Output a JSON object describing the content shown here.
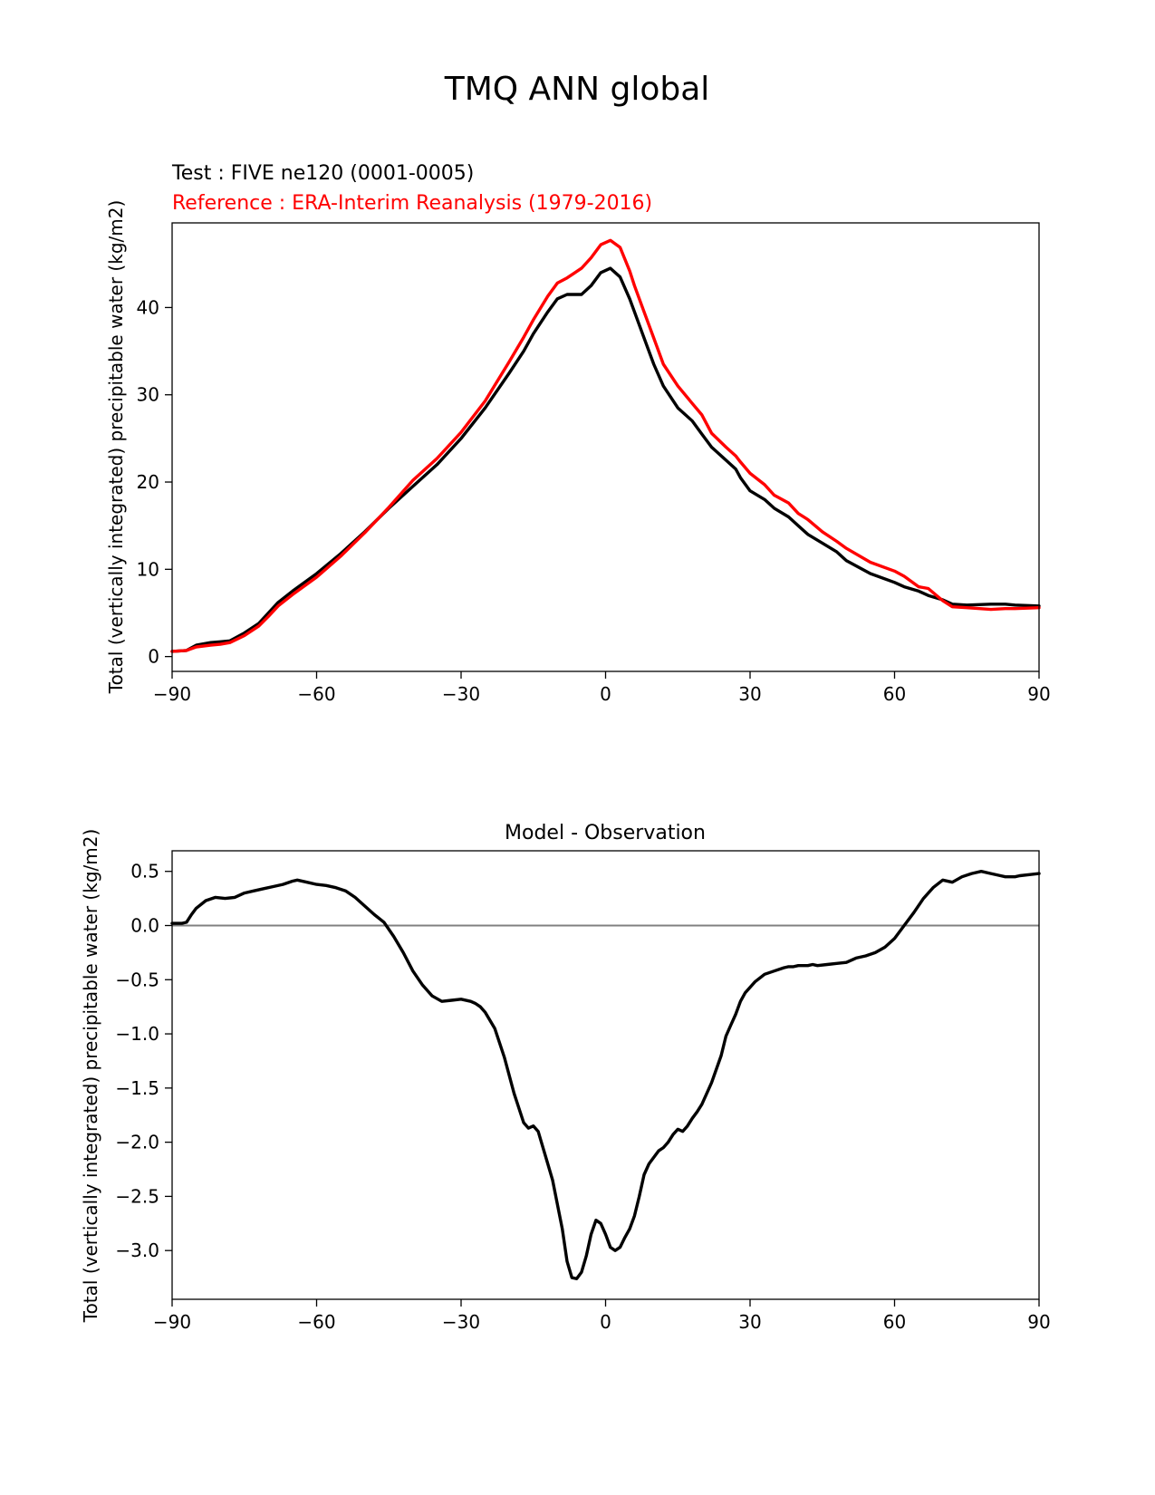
{
  "suptitle": "TMQ ANN global",
  "chart_data": [
    {
      "type": "line",
      "title_test": "Test : FIVE ne120 (0001-0005)",
      "title_reference": "Reference : ERA-Interim Reanalysis (1979-2016)",
      "xlabel": "",
      "ylabel": "Total (vertically integrated) precipitable water (kg/m2)",
      "xlim": [
        -90,
        90
      ],
      "ylim": [
        -1.7,
        49.7
      ],
      "xticks": [
        -90,
        -60,
        -30,
        0,
        30,
        60,
        90
      ],
      "xtick_labels": [
        "−90",
        "−60",
        "−30",
        "0",
        "30",
        "60",
        "90"
      ],
      "yticks": [
        0,
        10,
        20,
        30,
        40
      ],
      "ytick_labels": [
        "0",
        "10",
        "20",
        "30",
        "40"
      ],
      "grid": false,
      "series": [
        {
          "name": "Test : FIVE ne120 (0001-0005)",
          "color": "#000000",
          "x": [
            -90,
            -87,
            -85,
            -82,
            -80,
            -78,
            -75,
            -72,
            -70,
            -68,
            -65,
            -60,
            -55,
            -50,
            -45,
            -40,
            -35,
            -30,
            -25,
            -20,
            -17,
            -15,
            -12,
            -10,
            -8,
            -5,
            -3,
            -1,
            1,
            3,
            5,
            6,
            8,
            10,
            12,
            15,
            18,
            20,
            22,
            25,
            27,
            28,
            30,
            33,
            35,
            38,
            40,
            42,
            45,
            48,
            50,
            55,
            60,
            62,
            65,
            67,
            70,
            72,
            75,
            80,
            83,
            85,
            90
          ],
          "y": [
            0.6,
            0.7,
            1.3,
            1.6,
            1.7,
            1.8,
            2.7,
            3.8,
            5.0,
            6.2,
            7.5,
            9.5,
            11.8,
            14.3,
            17.0,
            19.5,
            22.0,
            25.0,
            28.5,
            32.5,
            35.0,
            37.0,
            39.5,
            41.0,
            41.5,
            41.5,
            42.5,
            44.0,
            44.5,
            43.5,
            41.0,
            39.5,
            36.5,
            33.5,
            31.0,
            28.5,
            27.0,
            25.5,
            24.0,
            22.5,
            21.5,
            20.5,
            19.0,
            18.0,
            17.0,
            16.0,
            15.0,
            14.0,
            13.0,
            12.0,
            11.0,
            9.5,
            8.5,
            8.0,
            7.5,
            7.0,
            6.5,
            6.0,
            5.9,
            6.0,
            6.0,
            5.9,
            5.8
          ]
        },
        {
          "name": "Reference : ERA-Interim Reanalysis (1979-2016)",
          "color": "#ff0000",
          "x": [
            -90,
            -87,
            -85,
            -82,
            -80,
            -78,
            -75,
            -72,
            -70,
            -68,
            -65,
            -60,
            -55,
            -50,
            -45,
            -40,
            -35,
            -30,
            -25,
            -20,
            -17,
            -15,
            -12,
            -10,
            -8,
            -5,
            -3,
            -1,
            1,
            3,
            5,
            6,
            8,
            10,
            12,
            15,
            18,
            20,
            22,
            25,
            27,
            28,
            30,
            33,
            35,
            38,
            40,
            42,
            45,
            48,
            50,
            55,
            60,
            62,
            65,
            67,
            70,
            72,
            75,
            80,
            83,
            85,
            90
          ],
          "y": [
            0.6,
            0.7,
            1.1,
            1.3,
            1.4,
            1.6,
            2.4,
            3.5,
            4.6,
            5.8,
            7.1,
            9.1,
            11.5,
            14.2,
            17.1,
            20.2,
            22.7,
            25.7,
            29.3,
            33.8,
            36.6,
            38.6,
            41.3,
            42.8,
            43.4,
            44.5,
            45.7,
            47.2,
            47.7,
            46.9,
            44.2,
            42.5,
            39.5,
            36.5,
            33.5,
            31.0,
            29.0,
            27.7,
            25.6,
            24.0,
            23.0,
            22.3,
            21.0,
            19.7,
            18.5,
            17.6,
            16.4,
            15.7,
            14.3,
            13.2,
            12.4,
            10.8,
            9.8,
            9.2,
            8.0,
            7.8,
            6.4,
            5.7,
            5.6,
            5.4,
            5.5,
            5.5,
            5.6
          ]
        }
      ]
    },
    {
      "type": "line",
      "title": "Model - Observation",
      "xlabel": "",
      "ylabel": "Total (vertically integrated) precipitable water (kg/m2)",
      "xlim": [
        -90,
        90
      ],
      "ylim": [
        -3.45,
        0.69
      ],
      "xticks": [
        -90,
        -60,
        -30,
        0,
        30,
        60,
        90
      ],
      "xtick_labels": [
        "−90",
        "−60",
        "−30",
        "0",
        "30",
        "60",
        "90"
      ],
      "yticks": [
        0.5,
        0.0,
        -0.5,
        -1.0,
        -1.5,
        -2.0,
        -2.5,
        -3.0
      ],
      "ytick_labels": [
        "0.5",
        "0.0",
        "−0.5",
        "−1.0",
        "−1.5",
        "−2.0",
        "−2.5",
        "−3.0"
      ],
      "grid": false,
      "zero_line": {
        "y": 0.0,
        "color": "#808080"
      },
      "series": [
        {
          "name": "Model - Observation",
          "color": "#000000",
          "x": [
            -90,
            -88,
            -87,
            -86,
            -85,
            -83,
            -81,
            -79,
            -77,
            -75,
            -73,
            -71,
            -69,
            -67,
            -65,
            -64,
            -62,
            -60,
            -58,
            -56,
            -54,
            -52,
            -50,
            -48,
            -46,
            -44,
            -42,
            -40,
            -38,
            -36,
            -34,
            -32,
            -30,
            -28,
            -27,
            -26,
            -25,
            -23,
            -21,
            -19,
            -17,
            -16,
            -15,
            -14,
            -13,
            -12,
            -11,
            -9,
            -8,
            -7,
            -6,
            -5,
            -4,
            -3,
            -2,
            -1,
            0,
            1,
            2,
            3,
            4,
            5,
            6,
            7,
            8,
            9,
            10,
            11,
            12,
            13,
            14,
            15,
            16,
            17,
            18,
            19,
            20,
            22,
            24,
            25,
            26,
            27,
            28,
            29,
            31,
            33,
            35,
            37,
            38,
            39,
            40,
            42,
            43,
            44,
            46,
            48,
            50,
            52,
            54,
            56,
            58,
            60,
            62,
            64,
            66,
            68,
            70,
            72,
            74,
            76,
            78,
            80,
            82,
            83,
            84,
            85,
            86,
            88,
            90
          ],
          "y": [
            0.02,
            0.02,
            0.03,
            0.1,
            0.16,
            0.23,
            0.26,
            0.25,
            0.26,
            0.3,
            0.32,
            0.34,
            0.36,
            0.38,
            0.41,
            0.42,
            0.4,
            0.38,
            0.37,
            0.35,
            0.32,
            0.26,
            0.18,
            0.1,
            0.03,
            -0.1,
            -0.25,
            -0.42,
            -0.55,
            -0.65,
            -0.7,
            -0.69,
            -0.68,
            -0.7,
            -0.72,
            -0.75,
            -0.8,
            -0.95,
            -1.22,
            -1.55,
            -1.82,
            -1.87,
            -1.85,
            -1.9,
            -2.05,
            -2.2,
            -2.35,
            -2.8,
            -3.1,
            -3.25,
            -3.26,
            -3.2,
            -3.05,
            -2.85,
            -2.72,
            -2.75,
            -2.85,
            -2.97,
            -3.0,
            -2.97,
            -2.88,
            -2.8,
            -2.68,
            -2.5,
            -2.3,
            -2.2,
            -2.14,
            -2.08,
            -2.05,
            -2.0,
            -1.93,
            -1.88,
            -1.9,
            -1.85,
            -1.78,
            -1.72,
            -1.65,
            -1.45,
            -1.2,
            -1.02,
            -0.92,
            -0.82,
            -0.7,
            -0.62,
            -0.52,
            -0.45,
            -0.42,
            -0.39,
            -0.38,
            -0.38,
            -0.37,
            -0.37,
            -0.36,
            -0.37,
            -0.36,
            -0.35,
            -0.34,
            -0.3,
            -0.28,
            -0.25,
            -0.2,
            -0.12,
            0.0,
            0.12,
            0.25,
            0.35,
            0.42,
            0.4,
            0.45,
            0.48,
            0.5,
            0.48,
            0.46,
            0.45,
            0.45,
            0.45,
            0.46,
            0.47,
            0.48
          ]
        }
      ]
    }
  ]
}
